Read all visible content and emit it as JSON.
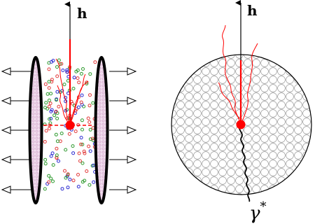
{
  "labels": {
    "left_axis": "h",
    "right_axis": "h",
    "photon": "γ",
    "photon_star": "*"
  },
  "colors": {
    "axis": "#000000",
    "track": "#ff0000",
    "vertex": "#ff0000",
    "plate_fill": "#f1ddee",
    "dot_red": "#e23b3b",
    "dot_green": "#2f9a2f",
    "dot_blue": "#2b2bd1",
    "nucleus_pattern": "#9a9a9a"
  },
  "icons": {
    "left_arrows": "outline-arrow-left-icon",
    "right_arrows": "outline-arrow-right-icon",
    "photon_line": "wavy-line-icon"
  }
}
